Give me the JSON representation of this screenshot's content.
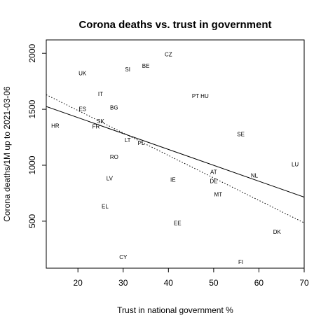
{
  "chart_data": {
    "type": "scatter",
    "title": "Corona deaths vs. trust in government",
    "xlabel": "Trust in national government %",
    "ylabel": "Corona deaths/1M up to 2021-03-06",
    "xlim": [
      13,
      70
    ],
    "ylim": [
      80,
      2120
    ],
    "xticks": [
      20,
      30,
      40,
      50,
      60,
      70
    ],
    "yticks": [
      500,
      1000,
      1500,
      2000
    ],
    "grid": false,
    "points": [
      {
        "label": "CZ",
        "x": 40,
        "y": 1993
      },
      {
        "label": "BE",
        "x": 35,
        "y": 1889
      },
      {
        "label": "SI",
        "x": 31,
        "y": 1856
      },
      {
        "label": "UK",
        "x": 21,
        "y": 1822
      },
      {
        "label": "IT",
        "x": 25,
        "y": 1637
      },
      {
        "label": "PT",
        "x": 46,
        "y": 1618
      },
      {
        "label": "HU",
        "x": 48,
        "y": 1618
      },
      {
        "label": "ES",
        "x": 21,
        "y": 1504
      },
      {
        "label": "BG",
        "x": 28,
        "y": 1517
      },
      {
        "label": "SK",
        "x": 25,
        "y": 1394
      },
      {
        "label": "HR",
        "x": 15,
        "y": 1352
      },
      {
        "label": "FR",
        "x": 24,
        "y": 1346
      },
      {
        "label": "SE",
        "x": 56,
        "y": 1277
      },
      {
        "label": "LT",
        "x": 31,
        "y": 1226
      },
      {
        "label": "PL",
        "x": 34,
        "y": 1200
      },
      {
        "label": "RO",
        "x": 28,
        "y": 1076
      },
      {
        "label": "LU",
        "x": 68,
        "y": 1009
      },
      {
        "label": "AT",
        "x": 50,
        "y": 939
      },
      {
        "label": "NL",
        "x": 59,
        "y": 910
      },
      {
        "label": "LV",
        "x": 27,
        "y": 885
      },
      {
        "label": "IE",
        "x": 41,
        "y": 872
      },
      {
        "label": "DE",
        "x": 50,
        "y": 859
      },
      {
        "label": "MT",
        "x": 51,
        "y": 740
      },
      {
        "label": "EL",
        "x": 26,
        "y": 635
      },
      {
        "label": "EE",
        "x": 42,
        "y": 485
      },
      {
        "label": "DK",
        "x": 64,
        "y": 406
      },
      {
        "label": "CY",
        "x": 30,
        "y": 181
      },
      {
        "label": "FI",
        "x": 56,
        "y": 136
      }
    ],
    "lines": [
      {
        "style": "solid",
        "x": [
          13,
          70
        ],
        "y": [
          1525,
          715
        ]
      },
      {
        "style": "dotted",
        "x": [
          13,
          70
        ],
        "y": [
          1630,
          485
        ]
      }
    ]
  }
}
